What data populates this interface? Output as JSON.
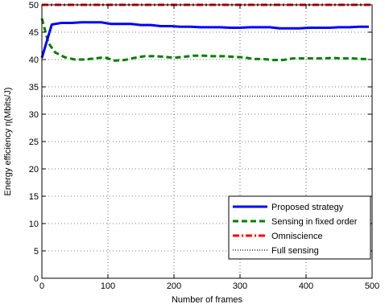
{
  "chart_data": {
    "type": "line",
    "xlabel": "Number of frames",
    "ylabel": "Energy efficiency η(Mbits/J)",
    "xlim": [
      0,
      500
    ],
    "ylim": [
      0,
      50
    ],
    "xticks": [
      0,
      100,
      200,
      300,
      400,
      500
    ],
    "yticks": [
      0,
      5,
      10,
      15,
      20,
      25,
      30,
      35,
      40,
      45,
      50
    ],
    "grid": true,
    "legend_position": "bottom-right",
    "series": [
      {
        "name": "Proposed strategy",
        "color": "#0000ff",
        "style": "solid",
        "x": [
          0,
          15,
          30,
          45,
          60,
          75,
          90,
          105,
          120,
          135,
          150,
          165,
          180,
          195,
          210,
          225,
          240,
          255,
          270,
          285,
          300,
          315,
          330,
          345,
          360,
          375,
          390,
          405,
          420,
          435,
          450,
          465,
          480,
          495
        ],
        "y": [
          40.3,
          46.4,
          46.7,
          46.7,
          46.8,
          46.8,
          46.8,
          46.5,
          46.5,
          46.5,
          46.3,
          46.3,
          46.1,
          46.1,
          46.0,
          46.0,
          45.9,
          45.9,
          45.9,
          45.8,
          45.8,
          45.9,
          45.9,
          45.9,
          45.7,
          45.7,
          45.7,
          45.8,
          45.8,
          45.8,
          45.9,
          45.9,
          46.0,
          46.0
        ]
      },
      {
        "name": "Sensing in fixed order",
        "color": "#008000",
        "style": "dashed",
        "x": [
          0,
          10,
          20,
          35,
          50,
          65,
          80,
          95,
          110,
          125,
          140,
          155,
          170,
          185,
          200,
          215,
          230,
          245,
          260,
          275,
          290,
          305,
          320,
          335,
          350,
          365,
          380,
          395,
          410,
          425,
          440,
          455,
          470,
          485,
          495
        ],
        "y": [
          47.5,
          43.0,
          41.3,
          40.4,
          40.0,
          40.0,
          40.2,
          40.4,
          39.8,
          39.9,
          40.3,
          40.6,
          40.6,
          40.5,
          40.3,
          40.5,
          40.7,
          40.7,
          40.6,
          40.6,
          40.5,
          40.4,
          40.1,
          40.1,
          39.9,
          39.9,
          40.2,
          40.2,
          40.2,
          40.2,
          40.3,
          40.2,
          40.2,
          40.1,
          40.1
        ]
      },
      {
        "name": "Omniscience",
        "color": "#ff0000",
        "style": "dashdot",
        "x": [
          0,
          500
        ],
        "y": [
          50.0,
          50.0
        ]
      },
      {
        "name": "Full sensing",
        "color": "#000000",
        "style": "dotted",
        "x": [
          0,
          500
        ],
        "y": [
          33.3,
          33.3
        ]
      }
    ]
  }
}
